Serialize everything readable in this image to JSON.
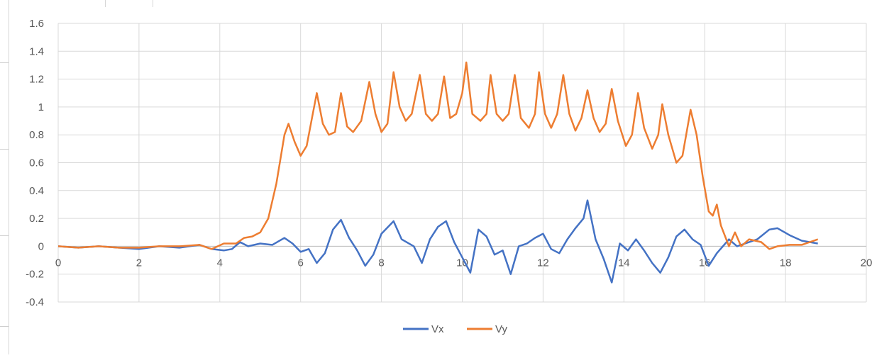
{
  "chart_data": {
    "type": "line",
    "title": "",
    "xlabel": "",
    "ylabel": "",
    "xlim": [
      0,
      20
    ],
    "ylim": [
      -0.4,
      1.6
    ],
    "x_ticks": [
      0,
      2,
      4,
      6,
      8,
      10,
      12,
      14,
      16,
      18,
      20
    ],
    "y_ticks": [
      -0.4,
      -0.2,
      0,
      0.2,
      0.4,
      0.6,
      0.8,
      1,
      1.2,
      1.4,
      1.6
    ],
    "grid": true,
    "legend_position": "bottom",
    "series": [
      {
        "name": "Vx",
        "color": "#4472C4",
        "points": [
          [
            0,
            0
          ],
          [
            0.5,
            -0.01
          ],
          [
            1,
            0
          ],
          [
            1.5,
            -0.01
          ],
          [
            2,
            -0.02
          ],
          [
            2.5,
            0
          ],
          [
            3,
            -0.01
          ],
          [
            3.5,
            0.01
          ],
          [
            3.8,
            -0.02
          ],
          [
            4.1,
            -0.03
          ],
          [
            4.3,
            -0.02
          ],
          [
            4.5,
            0.03
          ],
          [
            4.7,
            0
          ],
          [
            5,
            0.02
          ],
          [
            5.3,
            0.01
          ],
          [
            5.6,
            0.06
          ],
          [
            5.8,
            0.02
          ],
          [
            6,
            -0.04
          ],
          [
            6.2,
            -0.02
          ],
          [
            6.4,
            -0.12
          ],
          [
            6.6,
            -0.05
          ],
          [
            6.8,
            0.12
          ],
          [
            7,
            0.19
          ],
          [
            7.2,
            0.06
          ],
          [
            7.4,
            -0.03
          ],
          [
            7.6,
            -0.14
          ],
          [
            7.8,
            -0.06
          ],
          [
            8,
            0.09
          ],
          [
            8.3,
            0.18
          ],
          [
            8.5,
            0.05
          ],
          [
            8.8,
            0
          ],
          [
            9,
            -0.12
          ],
          [
            9.2,
            0.05
          ],
          [
            9.4,
            0.14
          ],
          [
            9.6,
            0.18
          ],
          [
            9.8,
            0.03
          ],
          [
            10,
            -0.08
          ],
          [
            10.2,
            -0.19
          ],
          [
            10.4,
            0.12
          ],
          [
            10.6,
            0.07
          ],
          [
            10.8,
            -0.06
          ],
          [
            11,
            -0.03
          ],
          [
            11.2,
            -0.2
          ],
          [
            11.4,
            0
          ],
          [
            11.6,
            0.02
          ],
          [
            11.8,
            0.06
          ],
          [
            12,
            0.09
          ],
          [
            12.2,
            -0.02
          ],
          [
            12.4,
            -0.05
          ],
          [
            12.6,
            0.05
          ],
          [
            12.8,
            0.13
          ],
          [
            13,
            0.2
          ],
          [
            13.1,
            0.33
          ],
          [
            13.3,
            0.05
          ],
          [
            13.5,
            -0.09
          ],
          [
            13.7,
            -0.26
          ],
          [
            13.9,
            0.02
          ],
          [
            14.1,
            -0.03
          ],
          [
            14.3,
            0.05
          ],
          [
            14.5,
            -0.03
          ],
          [
            14.7,
            -0.12
          ],
          [
            14.9,
            -0.19
          ],
          [
            15.1,
            -0.08
          ],
          [
            15.3,
            0.07
          ],
          [
            15.5,
            0.12
          ],
          [
            15.7,
            0.05
          ],
          [
            15.9,
            0.01
          ],
          [
            16.1,
            -0.14
          ],
          [
            16.3,
            -0.05
          ],
          [
            16.6,
            0.05
          ],
          [
            16.8,
            0
          ],
          [
            17,
            0.02
          ],
          [
            17.3,
            0.05
          ],
          [
            17.6,
            0.12
          ],
          [
            17.8,
            0.13
          ],
          [
            18.1,
            0.08
          ],
          [
            18.4,
            0.04
          ],
          [
            18.8,
            0.02
          ]
        ]
      },
      {
        "name": "Vy",
        "color": "#ED7D31",
        "points": [
          [
            0,
            0
          ],
          [
            0.5,
            -0.01
          ],
          [
            1,
            0
          ],
          [
            1.5,
            -0.01
          ],
          [
            2,
            -0.01
          ],
          [
            2.5,
            0
          ],
          [
            3,
            0
          ],
          [
            3.5,
            0.01
          ],
          [
            3.8,
            -0.02
          ],
          [
            4.1,
            0.02
          ],
          [
            4.4,
            0.02
          ],
          [
            4.6,
            0.06
          ],
          [
            4.8,
            0.07
          ],
          [
            5,
            0.1
          ],
          [
            5.2,
            0.2
          ],
          [
            5.4,
            0.45
          ],
          [
            5.6,
            0.8
          ],
          [
            5.7,
            0.88
          ],
          [
            5.85,
            0.75
          ],
          [
            6,
            0.65
          ],
          [
            6.15,
            0.72
          ],
          [
            6.3,
            0.95
          ],
          [
            6.4,
            1.1
          ],
          [
            6.55,
            0.88
          ],
          [
            6.7,
            0.8
          ],
          [
            6.85,
            0.82
          ],
          [
            7,
            1.1
          ],
          [
            7.15,
            0.86
          ],
          [
            7.3,
            0.82
          ],
          [
            7.5,
            0.9
          ],
          [
            7.7,
            1.18
          ],
          [
            7.85,
            0.95
          ],
          [
            8,
            0.82
          ],
          [
            8.15,
            0.88
          ],
          [
            8.3,
            1.25
          ],
          [
            8.45,
            1
          ],
          [
            8.6,
            0.9
          ],
          [
            8.75,
            0.95
          ],
          [
            8.95,
            1.23
          ],
          [
            9.1,
            0.95
          ],
          [
            9.25,
            0.9
          ],
          [
            9.4,
            0.95
          ],
          [
            9.55,
            1.22
          ],
          [
            9.7,
            0.92
          ],
          [
            9.85,
            0.95
          ],
          [
            10,
            1.1
          ],
          [
            10.1,
            1.32
          ],
          [
            10.25,
            0.95
          ],
          [
            10.45,
            0.9
          ],
          [
            10.6,
            0.95
          ],
          [
            10.7,
            1.23
          ],
          [
            10.85,
            0.95
          ],
          [
            11,
            0.9
          ],
          [
            11.15,
            0.95
          ],
          [
            11.3,
            1.23
          ],
          [
            11.45,
            0.92
          ],
          [
            11.65,
            0.85
          ],
          [
            11.8,
            0.95
          ],
          [
            11.9,
            1.25
          ],
          [
            12.05,
            0.95
          ],
          [
            12.2,
            0.85
          ],
          [
            12.35,
            0.95
          ],
          [
            12.5,
            1.23
          ],
          [
            12.65,
            0.95
          ],
          [
            12.8,
            0.83
          ],
          [
            12.95,
            0.92
          ],
          [
            13.1,
            1.12
          ],
          [
            13.25,
            0.92
          ],
          [
            13.4,
            0.82
          ],
          [
            13.55,
            0.88
          ],
          [
            13.7,
            1.13
          ],
          [
            13.85,
            0.9
          ],
          [
            14.05,
            0.72
          ],
          [
            14.2,
            0.8
          ],
          [
            14.35,
            1.1
          ],
          [
            14.5,
            0.85
          ],
          [
            14.7,
            0.7
          ],
          [
            14.85,
            0.8
          ],
          [
            14.95,
            1.02
          ],
          [
            15.1,
            0.8
          ],
          [
            15.3,
            0.6
          ],
          [
            15.45,
            0.65
          ],
          [
            15.65,
            0.98
          ],
          [
            15.8,
            0.8
          ],
          [
            15.95,
            0.5
          ],
          [
            16.1,
            0.25
          ],
          [
            16.2,
            0.22
          ],
          [
            16.3,
            0.3
          ],
          [
            16.4,
            0.15
          ],
          [
            16.6,
            0
          ],
          [
            16.75,
            0.1
          ],
          [
            16.9,
            0
          ],
          [
            17.1,
            0.05
          ],
          [
            17.4,
            0.03
          ],
          [
            17.6,
            -0.02
          ],
          [
            17.8,
            0
          ],
          [
            18.1,
            0.01
          ],
          [
            18.4,
            0.01
          ],
          [
            18.6,
            0.03
          ],
          [
            18.8,
            0.05
          ]
        ]
      }
    ]
  }
}
